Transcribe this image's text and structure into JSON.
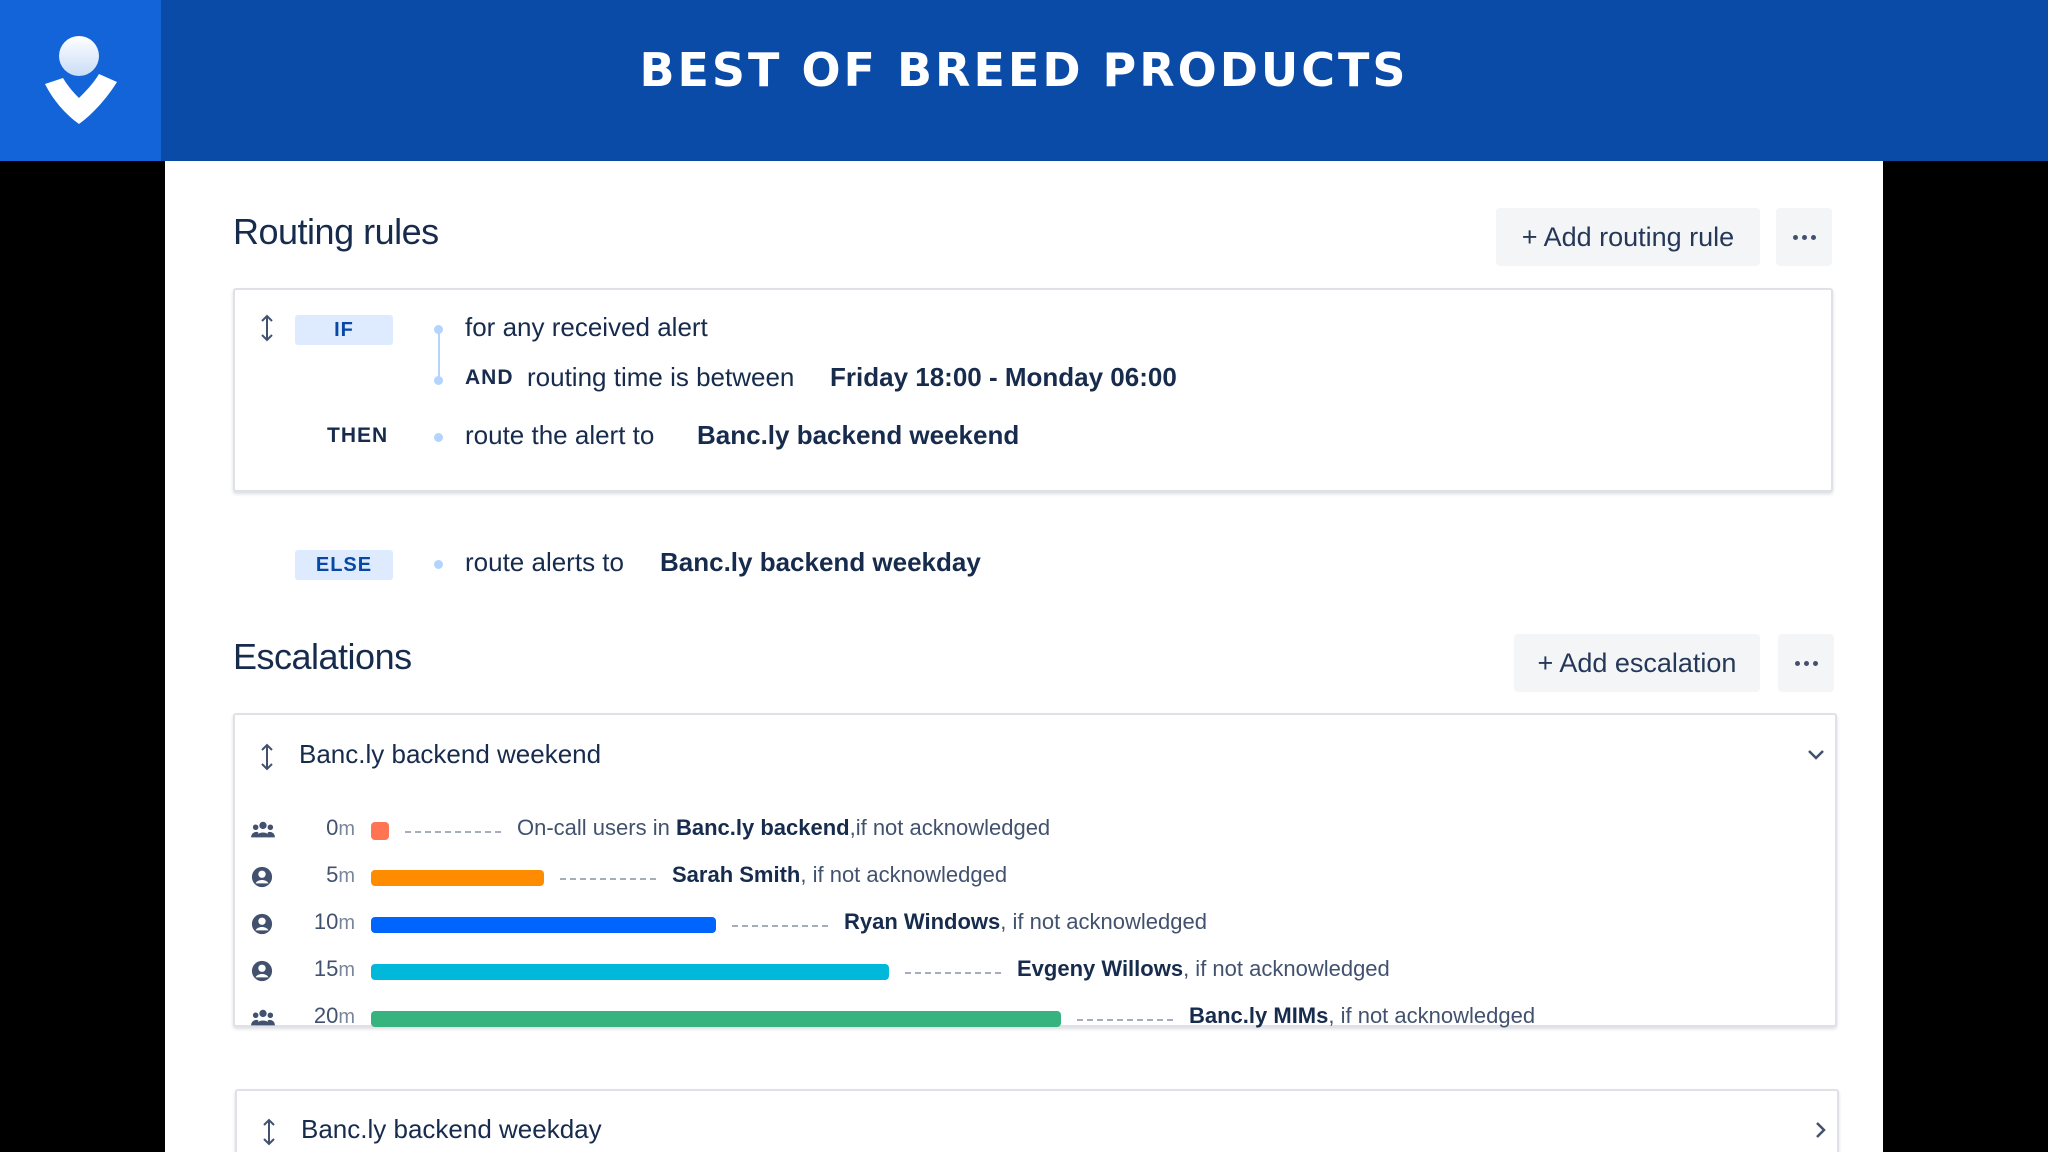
{
  "header": {
    "title": "BEST OF BREED PRODUCTS"
  },
  "routing": {
    "title": "Routing rules",
    "add_button": "+ Add routing rule",
    "if_tag": "IF",
    "condition1": "for any received alert",
    "and_kw": "AND",
    "condition2_text": "routing time is between",
    "condition2_value": "Friday 18:00 - Monday 06:00",
    "then_kw": "THEN",
    "then_text": "route the alert to",
    "then_value": "Banc.ly backend weekend",
    "else_tag": "ELSE",
    "else_text": "route alerts to",
    "else_value": "Banc.ly backend weekday"
  },
  "escalations": {
    "title": "Escalations",
    "add_button": "+ Add escalation",
    "cards": [
      {
        "name": "Banc.ly backend weekend",
        "expanded": true,
        "steps": [
          {
            "time": "0",
            "unit": "m",
            "minutes": 0,
            "color": "#ff7452",
            "icon": "team-icon",
            "prefix": "On-call users in ",
            "target": "Banc.ly backend",
            "suffix": ",if not acknowledged"
          },
          {
            "time": "5",
            "unit": "m",
            "minutes": 5,
            "color": "#ff8b00",
            "icon": "user-icon",
            "prefix": "",
            "target": "Sarah Smith",
            "suffix": ", if not acknowledged"
          },
          {
            "time": "10",
            "unit": "m",
            "minutes": 10,
            "color": "#0065ff",
            "icon": "user-icon",
            "prefix": "",
            "target": "Ryan Windows",
            "suffix": ", if not acknowledged"
          },
          {
            "time": "15",
            "unit": "m",
            "minutes": 15,
            "color": "#00b8d9",
            "icon": "user-icon",
            "prefix": "",
            "target": "Evgeny Willows",
            "suffix": ", if not acknowledged"
          },
          {
            "time": "20",
            "unit": "m",
            "minutes": 20,
            "color": "#36b37e",
            "icon": "team-icon",
            "prefix": "",
            "target": "Banc.ly MIMs",
            "suffix": ", if not acknowledged"
          }
        ]
      },
      {
        "name": "Banc.ly backend weekday",
        "expanded": false
      }
    ]
  },
  "colors": {
    "banner": "#0a4ba8",
    "logo_bg": "#1364d8",
    "tag_bg": "#deebff",
    "tag_text": "#0747a6"
  }
}
